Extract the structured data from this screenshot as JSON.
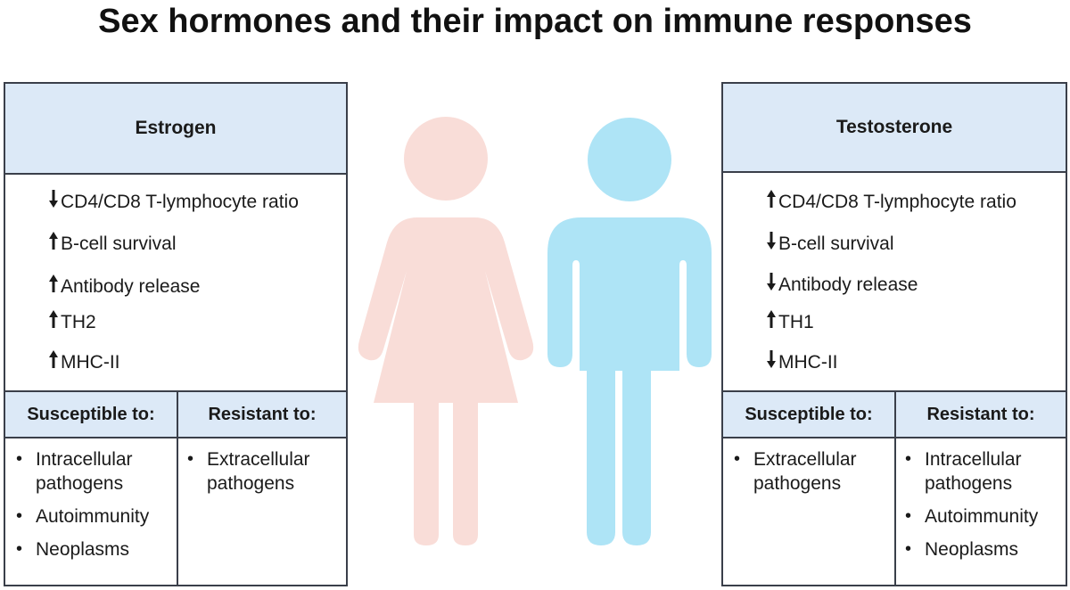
{
  "title": "Sex hormones and their impact on immune responses",
  "colors": {
    "header_fill": "#dce9f7",
    "female_figure": "#f9ddd8",
    "male_figure": "#aee4f6",
    "border": "#3a3f4a"
  },
  "estrogen": {
    "heading": "Estrogen",
    "effects": [
      {
        "direction": "down",
        "text": "CD4/CD8 T-lymphocyte ratio"
      },
      {
        "direction": "up",
        "text": "B-cell survival"
      },
      {
        "direction": "up",
        "text": "Antibody release"
      },
      {
        "direction": "up",
        "text": "TH2"
      },
      {
        "direction": "up",
        "text": "MHC-II"
      }
    ],
    "susceptible_heading": "Susceptible to:",
    "susceptible": [
      "Intracellular pathogens",
      "Autoimmunity",
      "Neoplasms"
    ],
    "resistant_heading": "Resistant to:",
    "resistant": [
      "Extracellular pathogens"
    ]
  },
  "testosterone": {
    "heading": "Testosterone",
    "effects": [
      {
        "direction": "up",
        "text": "CD4/CD8 T-lymphocyte ratio"
      },
      {
        "direction": "down",
        "text": "B-cell survival"
      },
      {
        "direction": "down",
        "text": "Antibody release"
      },
      {
        "direction": "up",
        "text": "TH1"
      },
      {
        "direction": "down",
        "text": "MHC-II"
      }
    ],
    "susceptible_heading": "Susceptible to:",
    "susceptible": [
      "Extracellular pathogens"
    ],
    "resistant_heading": "Resistant to:",
    "resistant": [
      "Intracellular pathogens",
      "Autoimmunity",
      "Neoplasms"
    ]
  }
}
